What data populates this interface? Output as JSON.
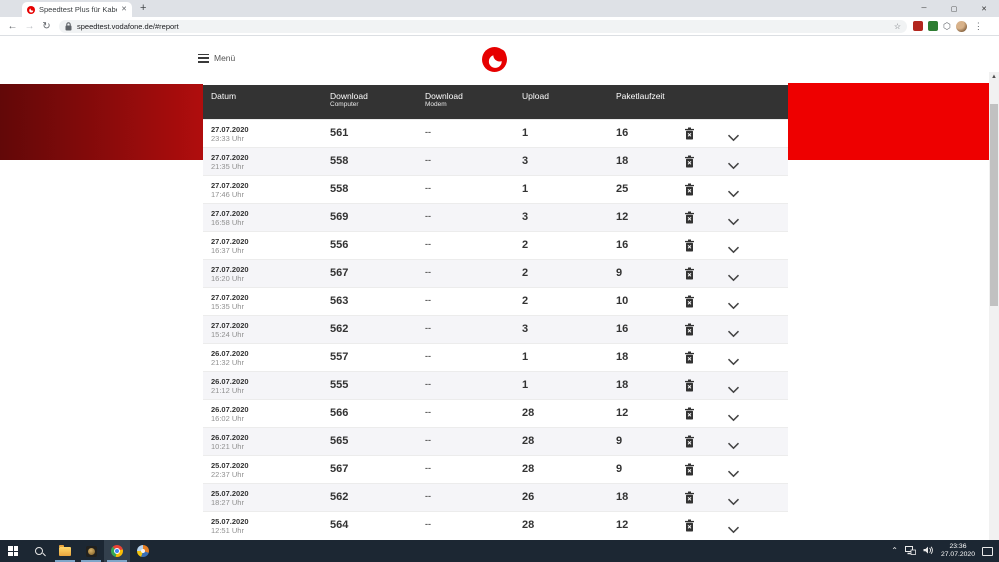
{
  "browser": {
    "tab_title": "Speedtest Plus für Kabel- und DS",
    "url": "speedtest.vodafone.de/#report",
    "glyphs": {
      "back": "←",
      "forward": "→",
      "reload": "↻",
      "star": "☆",
      "menu_dots": "⋮",
      "minimize": "─",
      "maximize": "▢",
      "close": "✕",
      "tab_close": "✕",
      "new_tab": "+",
      "puzzle": "⬡",
      "scroll_up": "▲",
      "scroll_down": "▼"
    }
  },
  "page": {
    "menu_label": "Menü"
  },
  "table": {
    "columns": [
      {
        "label": "Datum",
        "sub": ""
      },
      {
        "label": "Download",
        "sub": "Computer"
      },
      {
        "label": "Download",
        "sub": "Modem"
      },
      {
        "label": "Upload",
        "sub": ""
      },
      {
        "label": "Paketlaufzeit",
        "sub": ""
      }
    ],
    "rows": [
      {
        "date": "27.07.2020",
        "time": "23:33 Uhr",
        "download_computer": "561",
        "download_modem": "--",
        "upload": "1",
        "paketlaufzeit": "16"
      },
      {
        "date": "27.07.2020",
        "time": "21:35 Uhr",
        "download_computer": "558",
        "download_modem": "--",
        "upload": "3",
        "paketlaufzeit": "18"
      },
      {
        "date": "27.07.2020",
        "time": "17:46 Uhr",
        "download_computer": "558",
        "download_modem": "--",
        "upload": "1",
        "paketlaufzeit": "25"
      },
      {
        "date": "27.07.2020",
        "time": "16:58 Uhr",
        "download_computer": "569",
        "download_modem": "--",
        "upload": "3",
        "paketlaufzeit": "12"
      },
      {
        "date": "27.07.2020",
        "time": "16:37 Uhr",
        "download_computer": "556",
        "download_modem": "--",
        "upload": "2",
        "paketlaufzeit": "16"
      },
      {
        "date": "27.07.2020",
        "time": "16:20 Uhr",
        "download_computer": "567",
        "download_modem": "--",
        "upload": "2",
        "paketlaufzeit": "9"
      },
      {
        "date": "27.07.2020",
        "time": "15:35 Uhr",
        "download_computer": "563",
        "download_modem": "--",
        "upload": "2",
        "paketlaufzeit": "10"
      },
      {
        "date": "27.07.2020",
        "time": "15:24 Uhr",
        "download_computer": "562",
        "download_modem": "--",
        "upload": "3",
        "paketlaufzeit": "16"
      },
      {
        "date": "26.07.2020",
        "time": "21:32 Uhr",
        "download_computer": "557",
        "download_modem": "--",
        "upload": "1",
        "paketlaufzeit": "18"
      },
      {
        "date": "26.07.2020",
        "time": "21:12 Uhr",
        "download_computer": "555",
        "download_modem": "--",
        "upload": "1",
        "paketlaufzeit": "18"
      },
      {
        "date": "26.07.2020",
        "time": "16:02 Uhr",
        "download_computer": "566",
        "download_modem": "--",
        "upload": "28",
        "paketlaufzeit": "12"
      },
      {
        "date": "26.07.2020",
        "time": "10:21 Uhr",
        "download_computer": "565",
        "download_modem": "--",
        "upload": "28",
        "paketlaufzeit": "9"
      },
      {
        "date": "25.07.2020",
        "time": "22:37 Uhr",
        "download_computer": "567",
        "download_modem": "--",
        "upload": "28",
        "paketlaufzeit": "9"
      },
      {
        "date": "25.07.2020",
        "time": "18:27 Uhr",
        "download_computer": "562",
        "download_modem": "--",
        "upload": "26",
        "paketlaufzeit": "18"
      },
      {
        "date": "25.07.2020",
        "time": "12:51 Uhr",
        "download_computer": "564",
        "download_modem": "--",
        "upload": "28",
        "paketlaufzeit": "12"
      }
    ]
  },
  "taskbar": {
    "time": "23:36",
    "date": "27.07.2020",
    "tray_chevron": "⌃"
  },
  "colors": {
    "vodafone_red": "#e60000",
    "banner_red": "#ee0000",
    "banner_gradient_dark": "#620808",
    "header_bg": "#333333",
    "row_alt_bg": "#f5f5f8"
  }
}
